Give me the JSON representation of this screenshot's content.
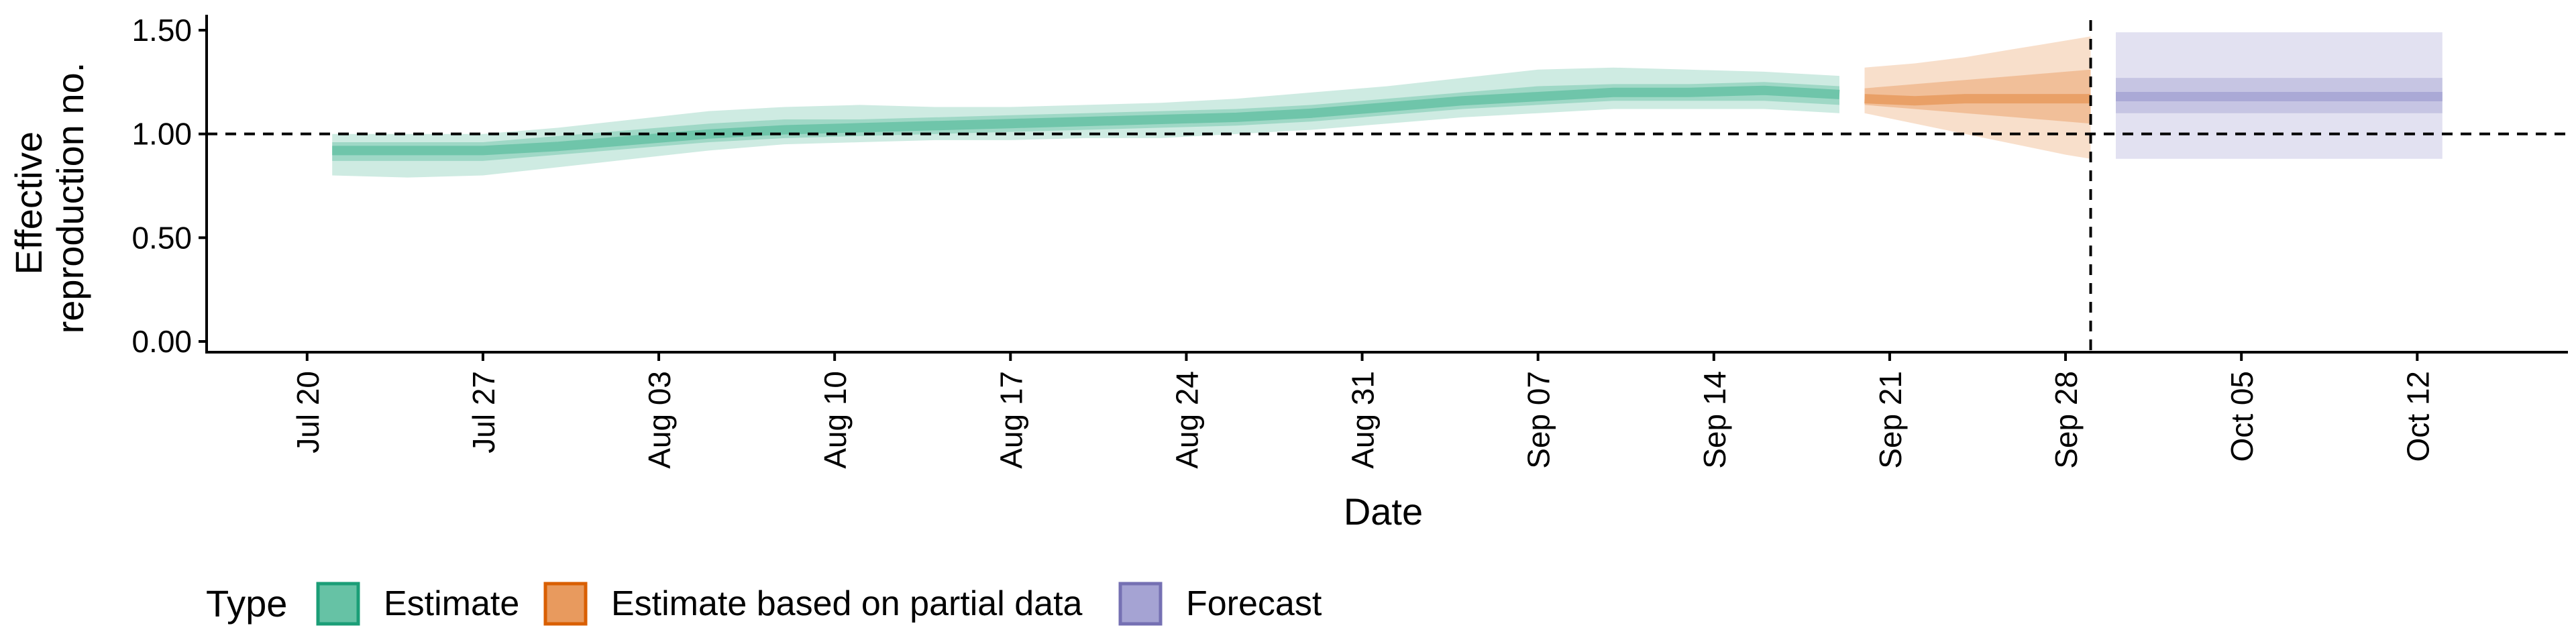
{
  "chart_data": {
    "type": "area",
    "title": "",
    "xlabel": "Date",
    "ylabel_lines": [
      "Effective",
      "reproduction no."
    ],
    "ylim": [
      0,
      1.55
    ],
    "yticks": [
      0.0,
      0.5,
      1.0,
      1.5
    ],
    "ytick_labels": [
      "0.00",
      "0.50",
      "1.00",
      "1.50"
    ],
    "xlim": [
      "2020-07-16",
      "2020-10-18"
    ],
    "xticks": [
      "2020-07-20",
      "2020-07-27",
      "2020-08-03",
      "2020-08-10",
      "2020-08-17",
      "2020-08-24",
      "2020-08-31",
      "2020-09-07",
      "2020-09-14",
      "2020-09-21",
      "2020-09-28",
      "2020-10-05",
      "2020-10-12"
    ],
    "xtick_labels": [
      "Jul 20",
      "Jul 27",
      "Aug 03",
      "Aug 10",
      "Aug 17",
      "Aug 24",
      "Aug 31",
      "Sep 07",
      "Sep 14",
      "Sep 21",
      "Sep 28",
      "Oct 05",
      "Oct 12"
    ],
    "reference_hline": 1.0,
    "reference_vline": "2020-09-29",
    "grid": false,
    "legend": {
      "title": "Type",
      "position": "bottom-left",
      "entries": [
        {
          "label": "Estimate",
          "fill": "#66c2a5",
          "stroke": "#1b9e77"
        },
        {
          "label": "Estimate based on partial data",
          "fill": "#e89a5e",
          "stroke": "#d95f02"
        },
        {
          "label": "Forecast",
          "fill": "#a5a3d3",
          "stroke": "#7570b3"
        }
      ]
    },
    "series": [
      {
        "name": "Estimate",
        "color": "#1b9e77",
        "band_color": "#66c2a5",
        "x": [
          "2020-07-21",
          "2020-07-24",
          "2020-07-27",
          "2020-07-30",
          "2020-08-02",
          "2020-08-05",
          "2020-08-08",
          "2020-08-11",
          "2020-08-14",
          "2020-08-17",
          "2020-08-20",
          "2020-08-23",
          "2020-08-26",
          "2020-08-29",
          "2020-09-01",
          "2020-09-04",
          "2020-09-07",
          "2020-09-10",
          "2020-09-13",
          "2020-09-16",
          "2020-09-19"
        ],
        "median": [
          0.92,
          0.92,
          0.92,
          0.94,
          0.97,
          1.0,
          1.02,
          1.03,
          1.04,
          1.05,
          1.06,
          1.07,
          1.08,
          1.1,
          1.13,
          1.16,
          1.18,
          1.2,
          1.2,
          1.21,
          1.19
        ],
        "lower90": [
          0.8,
          0.79,
          0.8,
          0.84,
          0.88,
          0.92,
          0.95,
          0.96,
          0.97,
          0.97,
          0.98,
          0.98,
          1.0,
          1.02,
          1.05,
          1.08,
          1.1,
          1.12,
          1.12,
          1.12,
          1.1
        ],
        "upper90": [
          1.0,
          1.0,
          1.0,
          1.03,
          1.07,
          1.11,
          1.13,
          1.14,
          1.13,
          1.13,
          1.14,
          1.15,
          1.17,
          1.2,
          1.23,
          1.27,
          1.31,
          1.32,
          1.31,
          1.3,
          1.28
        ],
        "lower50": [
          0.87,
          0.87,
          0.87,
          0.9,
          0.93,
          0.96,
          0.98,
          0.99,
          1.0,
          1.01,
          1.02,
          1.03,
          1.04,
          1.06,
          1.09,
          1.12,
          1.14,
          1.16,
          1.16,
          1.16,
          1.14
        ],
        "upper50": [
          0.96,
          0.96,
          0.96,
          0.99,
          1.02,
          1.05,
          1.07,
          1.07,
          1.08,
          1.09,
          1.1,
          1.11,
          1.12,
          1.14,
          1.17,
          1.2,
          1.23,
          1.24,
          1.24,
          1.25,
          1.23
        ]
      },
      {
        "name": "Estimate based on partial data",
        "color": "#d95f02",
        "band_color": "#e89a5e",
        "x": [
          "2020-09-20",
          "2020-09-22",
          "2020-09-24",
          "2020-09-26",
          "2020-09-28",
          "2020-09-29"
        ],
        "median": [
          1.17,
          1.16,
          1.17,
          1.17,
          1.17,
          1.17
        ],
        "lower90": [
          1.1,
          1.05,
          1.0,
          0.95,
          0.9,
          0.88
        ],
        "upper90": [
          1.32,
          1.34,
          1.37,
          1.41,
          1.45,
          1.47
        ],
        "lower50": [
          1.14,
          1.12,
          1.1,
          1.08,
          1.06,
          1.05
        ],
        "upper50": [
          1.22,
          1.24,
          1.26,
          1.28,
          1.3,
          1.31
        ]
      },
      {
        "name": "Forecast",
        "color": "#7570b3",
        "band_color": "#a5a3d3",
        "x": [
          "2020-09-30",
          "2020-10-13"
        ],
        "median": [
          1.18,
          1.18
        ],
        "lower90": [
          0.88,
          0.88
        ],
        "upper90": [
          1.49,
          1.49
        ],
        "lower50": [
          1.1,
          1.1
        ],
        "upper50": [
          1.27,
          1.27
        ]
      }
    ]
  }
}
